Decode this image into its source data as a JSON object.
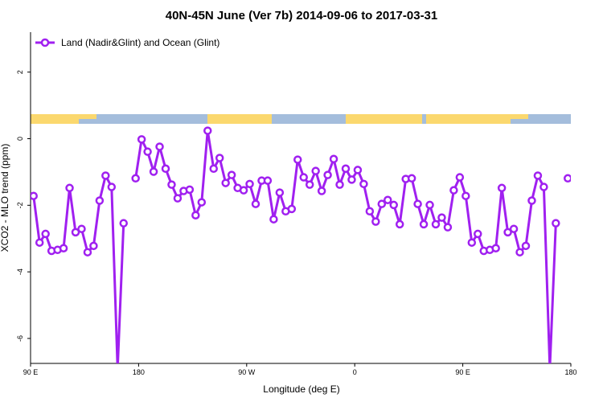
{
  "chart_data": {
    "type": "line",
    "title": "40N-45N June (Ver 7b)   2014-09-06 to 2017-03-31",
    "x_label": "Longitude (deg E)",
    "y_label": "XCO2 - MLO trend (ppm)",
    "xlim": [
      90,
      540
    ],
    "ylim": [
      -6.75,
      3.2
    ],
    "xticks": [
      {
        "value": 90,
        "label": "90 E"
      },
      180,
      {
        "value": 270,
        "label": "90 W"
      },
      {
        "value": 360,
        "label": "0"
      },
      {
        "value": 450,
        "label": "90 E"
      },
      {
        "value": 540,
        "label": "180"
      }
    ],
    "yticks": [
      -6,
      -4,
      -2,
      0,
      2
    ],
    "legend": "top-left",
    "x": [
      92.5,
      97.5,
      102.5,
      107.5,
      112.5,
      117.5,
      122.5,
      127.5,
      132.5,
      137.5,
      142.5,
      147.5,
      152.5,
      157.5,
      162.5,
      167.5,
      172.5,
      177.5,
      182.5,
      187.5,
      192.5,
      197.5,
      202.5,
      207.5,
      212.5,
      217.5,
      222.5,
      227.5,
      232.5,
      237.5,
      242.5,
      247.5,
      252.5,
      257.5,
      262.5,
      267.5,
      272.5,
      277.5,
      282.5,
      287.5,
      292.5,
      297.5,
      302.5,
      307.5,
      312.5,
      317.5,
      322.5,
      327.5,
      332.5,
      337.5,
      342.5,
      347.5,
      352.5,
      357.5,
      362.5,
      367.5,
      372.5,
      377.5,
      382.5,
      387.5,
      392.5,
      397.5,
      402.5,
      407.5,
      412.5,
      417.5,
      422.5,
      427.5,
      432.5,
      437.5,
      442.5,
      447.5,
      452.5,
      457.5,
      462.5,
      467.5,
      472.5,
      477.5,
      482.5,
      487.5,
      492.5,
      497.5,
      502.5,
      507.5,
      512.5,
      517.5,
      522.5,
      527.5,
      532.5,
      537.5
    ],
    "series": [
      {
        "name": "Land (Nadir&Glint) and Ocean (Glint)",
        "color": "#a020f0",
        "values": [
          -1.72,
          -3.12,
          -2.86,
          -3.37,
          -3.34,
          -3.29,
          -1.48,
          -2.81,
          -2.71,
          -3.41,
          -3.22,
          -1.86,
          -1.11,
          -1.45,
          -6.9,
          -2.54,
          null,
          -1.19,
          -0.02,
          -0.39,
          -0.99,
          -0.24,
          -0.9,
          -1.38,
          -1.79,
          -1.57,
          -1.53,
          -2.3,
          -1.91,
          0.24,
          -0.9,
          -0.58,
          -1.33,
          -1.09,
          -1.48,
          -1.55,
          -1.36,
          -1.96,
          -1.26,
          -1.26,
          -2.42,
          -1.62,
          -2.18,
          -2.11,
          -0.63,
          -1.16,
          -1.38,
          -0.97,
          -1.57,
          -1.09,
          -0.61,
          -1.38,
          -0.9,
          -1.23,
          -0.94,
          -1.36,
          -2.18,
          -2.49,
          -1.96,
          -1.84,
          -1.99,
          -2.57,
          -1.21,
          -1.19,
          -1.96,
          -2.57,
          -1.99,
          -2.57,
          -2.37,
          -2.66,
          -1.55,
          -1.16,
          -1.72,
          -3.12,
          -2.86,
          -3.37,
          -3.34,
          -3.29,
          -1.48,
          -2.81,
          -2.71,
          -3.41,
          -3.22,
          -1.86,
          -1.11,
          -1.45,
          -6.9,
          -2.54,
          null,
          -1.19
        ]
      }
    ]
  }
}
